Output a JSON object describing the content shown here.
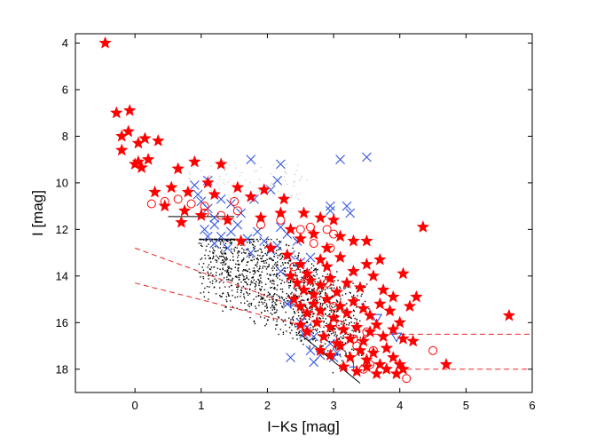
{
  "chart_data": {
    "type": "scatter",
    "title": "",
    "xlabel": "I−Ks [mag]",
    "ylabel": "I [mag]",
    "xlim": [
      -0.9,
      6.0
    ],
    "ylim": [
      19.0,
      3.6
    ],
    "y_inverted": true,
    "x_ticks": [
      0,
      1,
      2,
      3,
      4,
      5,
      6
    ],
    "x_tick_labels": [
      "0",
      "1",
      "2",
      "3",
      "4",
      "5",
      "6"
    ],
    "y_ticks": [
      4,
      6,
      8,
      10,
      12,
      14,
      16,
      18
    ],
    "y_tick_labels": [
      "4",
      "6",
      "8",
      "10",
      "12",
      "14",
      "16",
      "18"
    ],
    "grid": false,
    "legend": null,
    "colors": {
      "stars": "#ff0000",
      "circles": "#ff0000",
      "crosses": "#3355dd",
      "triangles": "#3355dd",
      "plus": "#3355dd",
      "dots": "#000000",
      "background_dots": "#c8c8c8",
      "dashed": "#ee2222",
      "solid": "#000000"
    },
    "series": [
      {
        "name": "red stars",
        "marker": "star",
        "points": [
          [
            -0.45,
            4.0
          ],
          [
            -0.28,
            7.0
          ],
          [
            -0.08,
            6.9
          ],
          [
            -0.2,
            8.0
          ],
          [
            -0.1,
            7.8
          ],
          [
            -0.2,
            8.6
          ],
          [
            0.05,
            8.3
          ],
          [
            0.15,
            8.1
          ],
          [
            0.35,
            8.2
          ],
          [
            0.0,
            9.2
          ],
          [
            0.05,
            9.1
          ],
          [
            0.1,
            9.35
          ],
          [
            0.2,
            9.0
          ],
          [
            0.65,
            9.4
          ],
          [
            0.9,
            9.1
          ],
          [
            1.3,
            9.2
          ],
          [
            1.1,
            10.0
          ],
          [
            0.3,
            10.4
          ],
          [
            0.55,
            10.2
          ],
          [
            0.8,
            10.4
          ],
          [
            0.45,
            11.0
          ],
          [
            0.75,
            11.2
          ],
          [
            1.2,
            10.5
          ],
          [
            1.55,
            10.2
          ],
          [
            1.75,
            10.6
          ],
          [
            1.95,
            10.3
          ],
          [
            2.25,
            10.7
          ],
          [
            1.0,
            11.4
          ],
          [
            0.7,
            11.7
          ],
          [
            1.4,
            11.6
          ],
          [
            1.9,
            11.5
          ],
          [
            2.2,
            11.3
          ],
          [
            2.55,
            11.3
          ],
          [
            2.8,
            11.5
          ],
          [
            3.0,
            11.6
          ],
          [
            1.6,
            12.5
          ],
          [
            2.05,
            12.8
          ],
          [
            2.35,
            12.0
          ],
          [
            2.5,
            12.4
          ],
          [
            2.7,
            12.2
          ],
          [
            2.9,
            12.8
          ],
          [
            3.1,
            12.3
          ],
          [
            3.3,
            12.5
          ],
          [
            3.5,
            12.5
          ],
          [
            4.35,
            11.9
          ],
          [
            2.3,
            13.1
          ],
          [
            2.5,
            13.5
          ],
          [
            2.6,
            13.9
          ],
          [
            2.8,
            13.3
          ],
          [
            2.9,
            13.6
          ],
          [
            3.1,
            13.2
          ],
          [
            3.3,
            13.8
          ],
          [
            3.5,
            13.5
          ],
          [
            3.7,
            13.3
          ],
          [
            2.35,
            14.0
          ],
          [
            2.45,
            14.3
          ],
          [
            2.55,
            14.6
          ],
          [
            2.65,
            14.2
          ],
          [
            2.7,
            14.8
          ],
          [
            2.8,
            14.4
          ],
          [
            2.95,
            14.1
          ],
          [
            3.05,
            14.7
          ],
          [
            3.2,
            14.3
          ],
          [
            3.4,
            14.5
          ],
          [
            3.6,
            14.0
          ],
          [
            3.75,
            14.6
          ],
          [
            4.05,
            13.9
          ],
          [
            2.4,
            15.0
          ],
          [
            2.5,
            15.3
          ],
          [
            2.6,
            15.6
          ],
          [
            2.7,
            15.2
          ],
          [
            2.8,
            15.5
          ],
          [
            2.9,
            15.0
          ],
          [
            3.0,
            15.8
          ],
          [
            3.1,
            15.3
          ],
          [
            3.2,
            15.6
          ],
          [
            3.3,
            15.1
          ],
          [
            3.45,
            15.4
          ],
          [
            3.55,
            15.7
          ],
          [
            3.7,
            15.2
          ],
          [
            3.85,
            15.5
          ],
          [
            3.9,
            14.9
          ],
          [
            4.25,
            14.9
          ],
          [
            4.15,
            15.3
          ],
          [
            2.5,
            16.1
          ],
          [
            2.6,
            16.4
          ],
          [
            2.75,
            16.0
          ],
          [
            2.85,
            16.6
          ],
          [
            2.95,
            16.2
          ],
          [
            3.05,
            16.9
          ],
          [
            3.15,
            16.3
          ],
          [
            3.25,
            16.7
          ],
          [
            3.35,
            16.2
          ],
          [
            3.45,
            16.8
          ],
          [
            3.55,
            16.4
          ],
          [
            3.65,
            16.1
          ],
          [
            3.75,
            16.6
          ],
          [
            3.9,
            16.3
          ],
          [
            4.05,
            16.7
          ],
          [
            2.8,
            17.2
          ],
          [
            2.95,
            17.4
          ],
          [
            3.1,
            17.0
          ],
          [
            3.25,
            17.5
          ],
          [
            3.4,
            17.2
          ],
          [
            3.5,
            17.6
          ],
          [
            3.6,
            17.3
          ],
          [
            3.7,
            17.8
          ],
          [
            3.8,
            17.1
          ],
          [
            3.9,
            17.5
          ],
          [
            4.0,
            17.8
          ],
          [
            4.2,
            16.8
          ],
          [
            3.15,
            17.9
          ],
          [
            3.35,
            18.1
          ],
          [
            3.5,
            17.9
          ],
          [
            3.65,
            18.2
          ],
          [
            3.8,
            18.0
          ],
          [
            3.95,
            18.2
          ],
          [
            4.05,
            18.0
          ],
          [
            4.7,
            17.8
          ],
          [
            5.65,
            15.7
          ],
          [
            4.0,
            16.0
          ]
        ]
      },
      {
        "name": "red circles",
        "marker": "circle",
        "points": [
          [
            0.25,
            10.9
          ],
          [
            0.45,
            10.8
          ],
          [
            0.65,
            10.7
          ],
          [
            0.85,
            10.9
          ],
          [
            1.05,
            11.0
          ],
          [
            1.05,
            11.3
          ],
          [
            1.3,
            11.4
          ],
          [
            1.55,
            11.2
          ],
          [
            1.5,
            10.8
          ],
          [
            1.9,
            11.8
          ],
          [
            2.2,
            11.6
          ],
          [
            2.5,
            12.0
          ],
          [
            2.65,
            11.9
          ],
          [
            2.9,
            12.0
          ],
          [
            3.0,
            12.2
          ],
          [
            2.7,
            12.6
          ],
          [
            2.95,
            12.8
          ],
          [
            2.4,
            13.6
          ],
          [
            2.6,
            14.1
          ],
          [
            2.9,
            14.3
          ],
          [
            3.0,
            15.3
          ],
          [
            3.1,
            16.1
          ],
          [
            3.3,
            16.7
          ],
          [
            3.35,
            17.0
          ],
          [
            3.6,
            17.2
          ],
          [
            3.5,
            16.4
          ],
          [
            3.55,
            17.8
          ],
          [
            3.45,
            18.0
          ],
          [
            4.1,
            18.4
          ],
          [
            4.5,
            17.2
          ]
        ]
      },
      {
        "name": "blue crosses",
        "marker": "x",
        "points": [
          [
            1.75,
            9.0
          ],
          [
            1.1,
            9.9
          ],
          [
            0.9,
            10.1
          ],
          [
            0.95,
            10.5
          ],
          [
            1.0,
            10.8
          ],
          [
            1.1,
            11.1
          ],
          [
            1.2,
            11.5
          ],
          [
            1.3,
            10.7
          ],
          [
            1.45,
            10.9
          ],
          [
            1.6,
            11.3
          ],
          [
            1.8,
            10.7
          ],
          [
            2.05,
            10.3
          ],
          [
            2.15,
            9.9
          ],
          [
            2.2,
            9.2
          ],
          [
            3.1,
            9.0
          ],
          [
            3.5,
            8.9
          ],
          [
            2.95,
            11.2
          ],
          [
            2.95,
            11.0
          ],
          [
            3.2,
            11.0
          ],
          [
            3.25,
            11.3
          ],
          [
            2.2,
            11.9
          ],
          [
            2.3,
            12.2
          ],
          [
            2.45,
            12.5
          ],
          [
            1.05,
            12.0
          ],
          [
            1.1,
            12.3
          ],
          [
            1.2,
            11.8
          ],
          [
            1.3,
            12.3
          ],
          [
            1.45,
            12.1
          ],
          [
            1.55,
            11.8
          ],
          [
            1.7,
            12.4
          ],
          [
            1.85,
            12.1
          ],
          [
            1.95,
            12.5
          ],
          [
            2.05,
            12.9
          ],
          [
            2.15,
            12.7
          ],
          [
            2.35,
            13.1
          ],
          [
            2.5,
            13.4
          ],
          [
            2.65,
            13.2
          ],
          [
            1.2,
            12.6
          ],
          [
            1.4,
            12.8
          ],
          [
            1.75,
            13.0
          ],
          [
            2.2,
            13.8
          ],
          [
            2.3,
            15.2
          ],
          [
            2.5,
            16.0
          ],
          [
            2.6,
            16.2
          ],
          [
            2.55,
            16.5
          ],
          [
            2.7,
            16.6
          ],
          [
            2.95,
            16.9
          ],
          [
            3.05,
            17.3
          ],
          [
            3.0,
            17.5
          ],
          [
            2.65,
            17.2
          ],
          [
            2.8,
            17.4
          ],
          [
            2.7,
            17.7
          ],
          [
            2.35,
            17.5
          ]
        ]
      },
      {
        "name": "blue triangles",
        "marker": "triangle-down",
        "points": [
          [
            3.65,
            15.8
          ],
          [
            3.95,
            16.6
          ]
        ]
      },
      {
        "name": "blue plus",
        "marker": "plus",
        "points": [
          [
            2.35,
            15.2
          ],
          [
            3.3,
            17.9
          ]
        ]
      }
    ],
    "lines": [
      {
        "name": "upper solid cut",
        "style": "solid",
        "color": "#000000",
        "points": [
          [
            0.5,
            11.45
          ],
          [
            1.5,
            11.45
          ]
        ]
      },
      {
        "name": "lower solid cut",
        "style": "solid",
        "color": "#000000",
        "points": [
          [
            2.5,
            16.5
          ],
          [
            3.4,
            18.6
          ]
        ]
      },
      {
        "name": "dashed left upper",
        "style": "dashed",
        "color": "#ee2222",
        "points": [
          [
            0.0,
            12.8
          ],
          [
            2.9,
            15.8
          ]
        ]
      },
      {
        "name": "dashed left lower",
        "style": "dashed",
        "color": "#ee2222",
        "points": [
          [
            0.0,
            14.3
          ],
          [
            2.5,
            16.1
          ]
        ]
      },
      {
        "name": "dashed right upper",
        "style": "dashed",
        "color": "#ee2222",
        "points": [
          [
            3.6,
            16.5
          ],
          [
            6.0,
            16.5
          ]
        ]
      },
      {
        "name": "dashed right lower",
        "style": "dashed",
        "color": "#ee2222",
        "points": [
          [
            4.1,
            18.0
          ],
          [
            6.0,
            18.0
          ]
        ]
      }
    ],
    "dot_cloud": {
      "name": "black dots",
      "description_range": {
        "x": [
          1.0,
          3.4
        ],
        "y": [
          12.5,
          18.0
        ]
      },
      "count": 1400
    }
  }
}
